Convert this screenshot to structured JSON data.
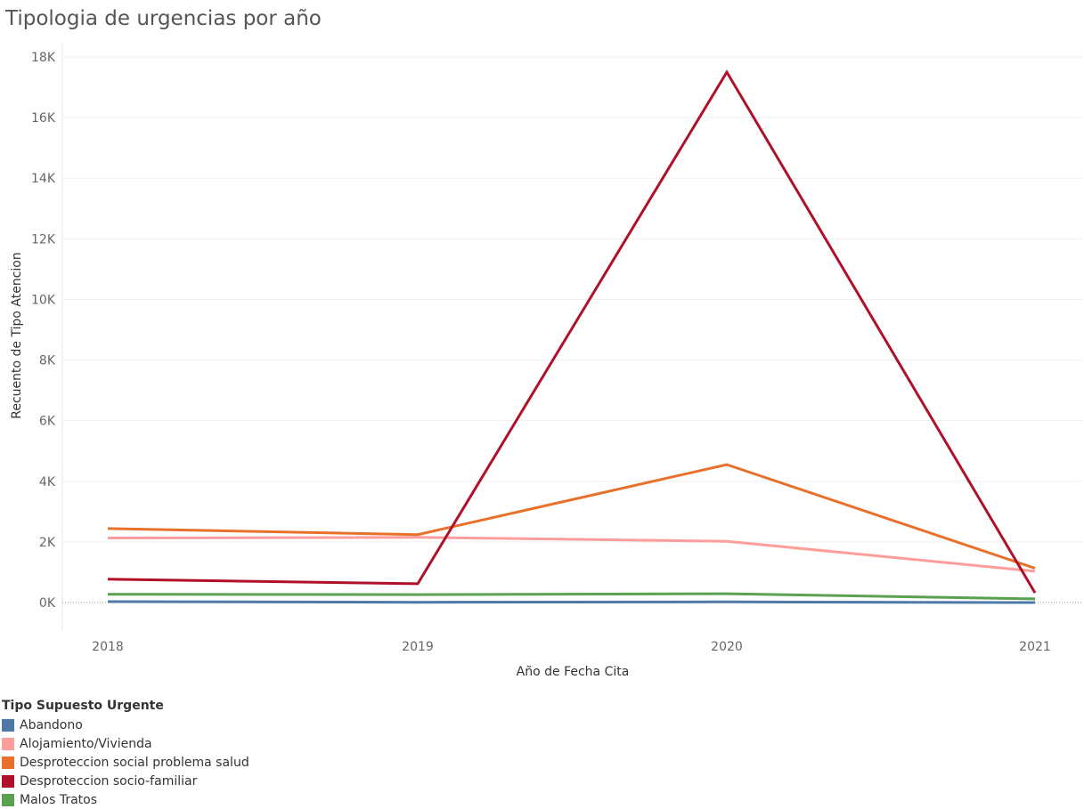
{
  "title": "Tipologia de urgencias por año",
  "chart_data": {
    "type": "line",
    "title": "Tipologia de urgencias por año",
    "xlabel": "Año de Fecha Cita",
    "ylabel": "Recuento de Tipo Atencion",
    "x": [
      "2018",
      "2019",
      "2020",
      "2021"
    ],
    "ylim": [
      -900,
      18000
    ],
    "yticks": [
      0,
      2000,
      4000,
      6000,
      8000,
      10000,
      12000,
      14000,
      16000,
      18000
    ],
    "ytick_labels": [
      "0K",
      "2K",
      "4K",
      "6K",
      "8K",
      "10K",
      "12K",
      "14K",
      "16K",
      "18K"
    ],
    "grid": true,
    "legend_position": "bottom-left",
    "series": [
      {
        "name": "Abandono",
        "color": "#4e79a7",
        "values": [
          30,
          10,
          20,
          0
        ]
      },
      {
        "name": "Alojamiento/Vivienda",
        "color": "#ff9d9a",
        "values": [
          2130,
          2150,
          2020,
          1030
        ]
      },
      {
        "name": "Desproteccion social problema salud",
        "color": "#e8702a",
        "values": [
          2440,
          2240,
          4550,
          1130
        ]
      },
      {
        "name": "Desproteccion socio-familiar",
        "color": "#b0102a",
        "values": [
          770,
          620,
          17500,
          320
        ]
      },
      {
        "name": "Malos Tratos",
        "color": "#59a14f",
        "values": [
          270,
          260,
          290,
          120
        ]
      }
    ]
  },
  "legend": {
    "title": "Tipo Supuesto Urgente"
  }
}
